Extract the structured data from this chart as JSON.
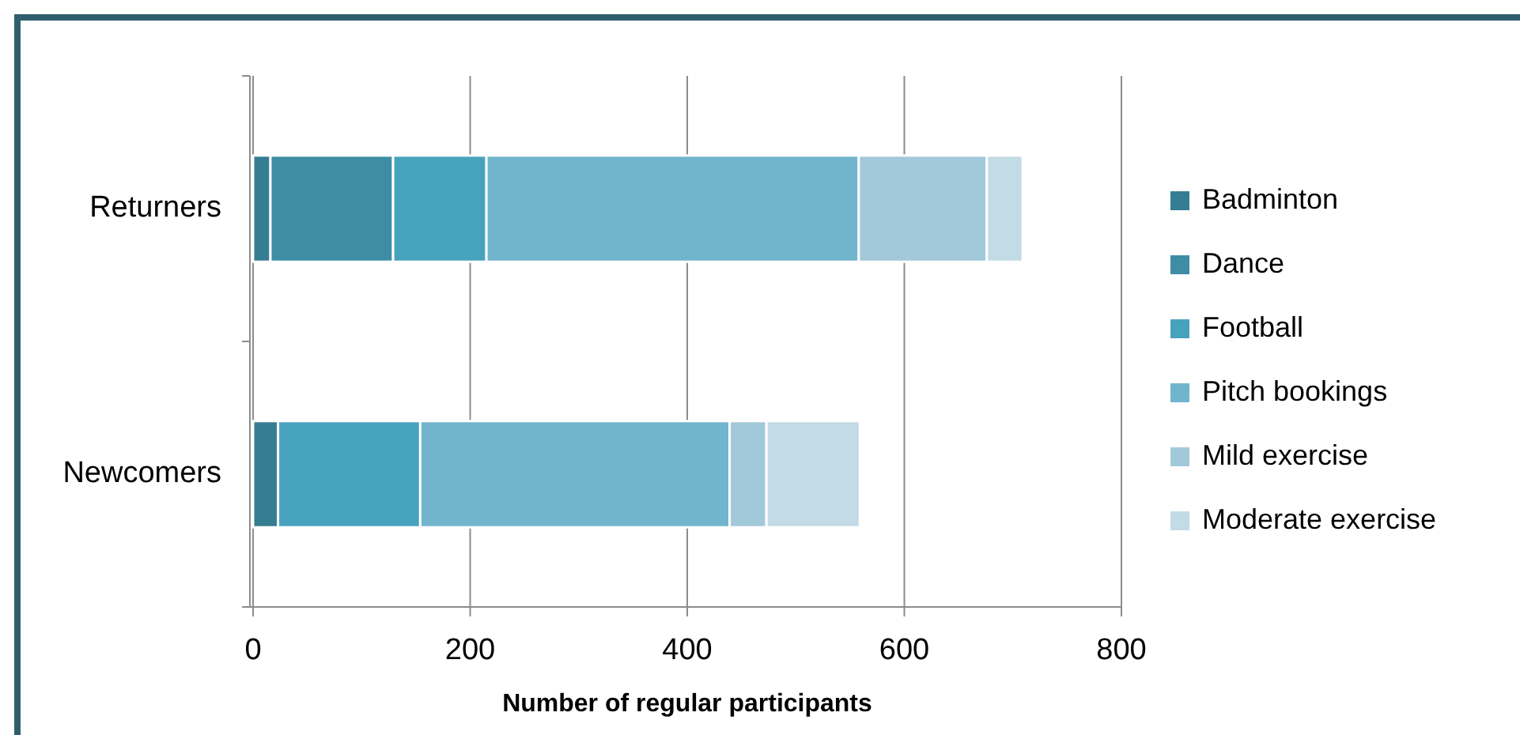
{
  "chart_data": {
    "type": "bar",
    "orientation": "horizontal",
    "stacked": true,
    "categories": [
      "Returners",
      "Newcomers"
    ],
    "series": [
      {
        "name": "Badminton",
        "color": "#357d91",
        "values": [
          16,
          23
        ]
      },
      {
        "name": "Dance",
        "color": "#3e8da5",
        "values": [
          113,
          0
        ]
      },
      {
        "name": "Football",
        "color": "#47a3bd",
        "values": [
          86,
          131
        ]
      },
      {
        "name": "Pitch bookings",
        "color": "#71b5cd",
        "values": [
          343,
          285
        ]
      },
      {
        "name": "Mild exercise",
        "color": "#a2c9da",
        "values": [
          118,
          34
        ]
      },
      {
        "name": "Moderate exercise",
        "color": "#c2dbe4",
        "values": [
          33,
          86
        ]
      }
    ],
    "xlabel": "Number of regular participants",
    "xlim": [
      0,
      800
    ],
    "xticks": [
      0,
      200,
      400,
      600,
      800
    ],
    "grid": "x",
    "legend": "right"
  }
}
